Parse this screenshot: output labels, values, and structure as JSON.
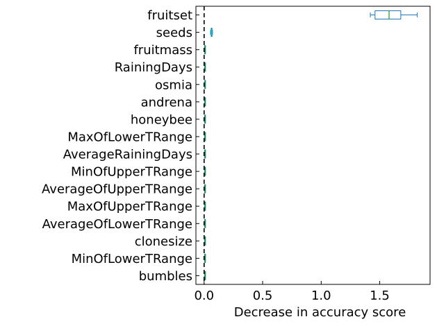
{
  "chart_data": {
    "type": "box",
    "orientation": "horizontal",
    "title": "",
    "xlabel": "Decrease in accuracy score",
    "ylabel": "",
    "xlim": [
      -0.07,
      1.93
    ],
    "xticks": [
      0.0,
      0.5,
      1.0,
      1.5
    ],
    "xtick_labels": [
      "0.0",
      "0.5",
      "1.0",
      "1.5"
    ],
    "grid": false,
    "reference_line": {
      "x": 0.0,
      "style": "dashed",
      "color": "#000000"
    },
    "colors": {
      "box": "#1f77b4",
      "median": "#2ca02c",
      "flier": "#17becf"
    },
    "categories": [
      "fruitset",
      "seeds",
      "fruitmass",
      "RainingDays",
      "osmia",
      "andrena",
      "honeybee",
      "MaxOfLowerTRange",
      "AverageRainingDays",
      "MinOfUpperTRange",
      "AverageOfUpperTRange",
      "MaxOfUpperTRange",
      "AverageOfLowerTRange",
      "clonesize",
      "MinOfLowerTRange",
      "bumbles"
    ],
    "boxes": [
      {
        "min": 1.42,
        "q1": 1.46,
        "median": 1.58,
        "q3": 1.68,
        "max": 1.82
      },
      {
        "min": 0.055,
        "q1": 0.06,
        "median": 0.064,
        "q3": 0.068,
        "max": 0.072
      },
      {
        "min": 0.004,
        "q1": 0.005,
        "median": 0.006,
        "q3": 0.007,
        "max": 0.008
      },
      {
        "min": 0.004,
        "q1": 0.005,
        "median": 0.006,
        "q3": 0.007,
        "max": 0.008
      },
      {
        "min": 0.004,
        "q1": 0.005,
        "median": 0.006,
        "q3": 0.007,
        "max": 0.008
      },
      {
        "min": 0.004,
        "q1": 0.005,
        "median": 0.006,
        "q3": 0.007,
        "max": 0.008
      },
      {
        "min": 0.004,
        "q1": 0.005,
        "median": 0.006,
        "q3": 0.007,
        "max": 0.008
      },
      {
        "min": 0.004,
        "q1": 0.005,
        "median": 0.006,
        "q3": 0.007,
        "max": 0.008
      },
      {
        "min": 0.004,
        "q1": 0.005,
        "median": 0.006,
        "q3": 0.007,
        "max": 0.008
      },
      {
        "min": 0.004,
        "q1": 0.005,
        "median": 0.006,
        "q3": 0.007,
        "max": 0.008
      },
      {
        "min": 0.004,
        "q1": 0.005,
        "median": 0.006,
        "q3": 0.007,
        "max": 0.008
      },
      {
        "min": 0.004,
        "q1": 0.005,
        "median": 0.006,
        "q3": 0.007,
        "max": 0.008
      },
      {
        "min": 0.004,
        "q1": 0.005,
        "median": 0.006,
        "q3": 0.007,
        "max": 0.008
      },
      {
        "min": 0.004,
        "q1": 0.005,
        "median": 0.006,
        "q3": 0.007,
        "max": 0.008
      },
      {
        "min": 0.004,
        "q1": 0.005,
        "median": 0.006,
        "q3": 0.007,
        "max": 0.008
      },
      {
        "min": 0.004,
        "q1": 0.005,
        "median": 0.006,
        "q3": 0.007,
        "max": 0.008
      }
    ]
  }
}
